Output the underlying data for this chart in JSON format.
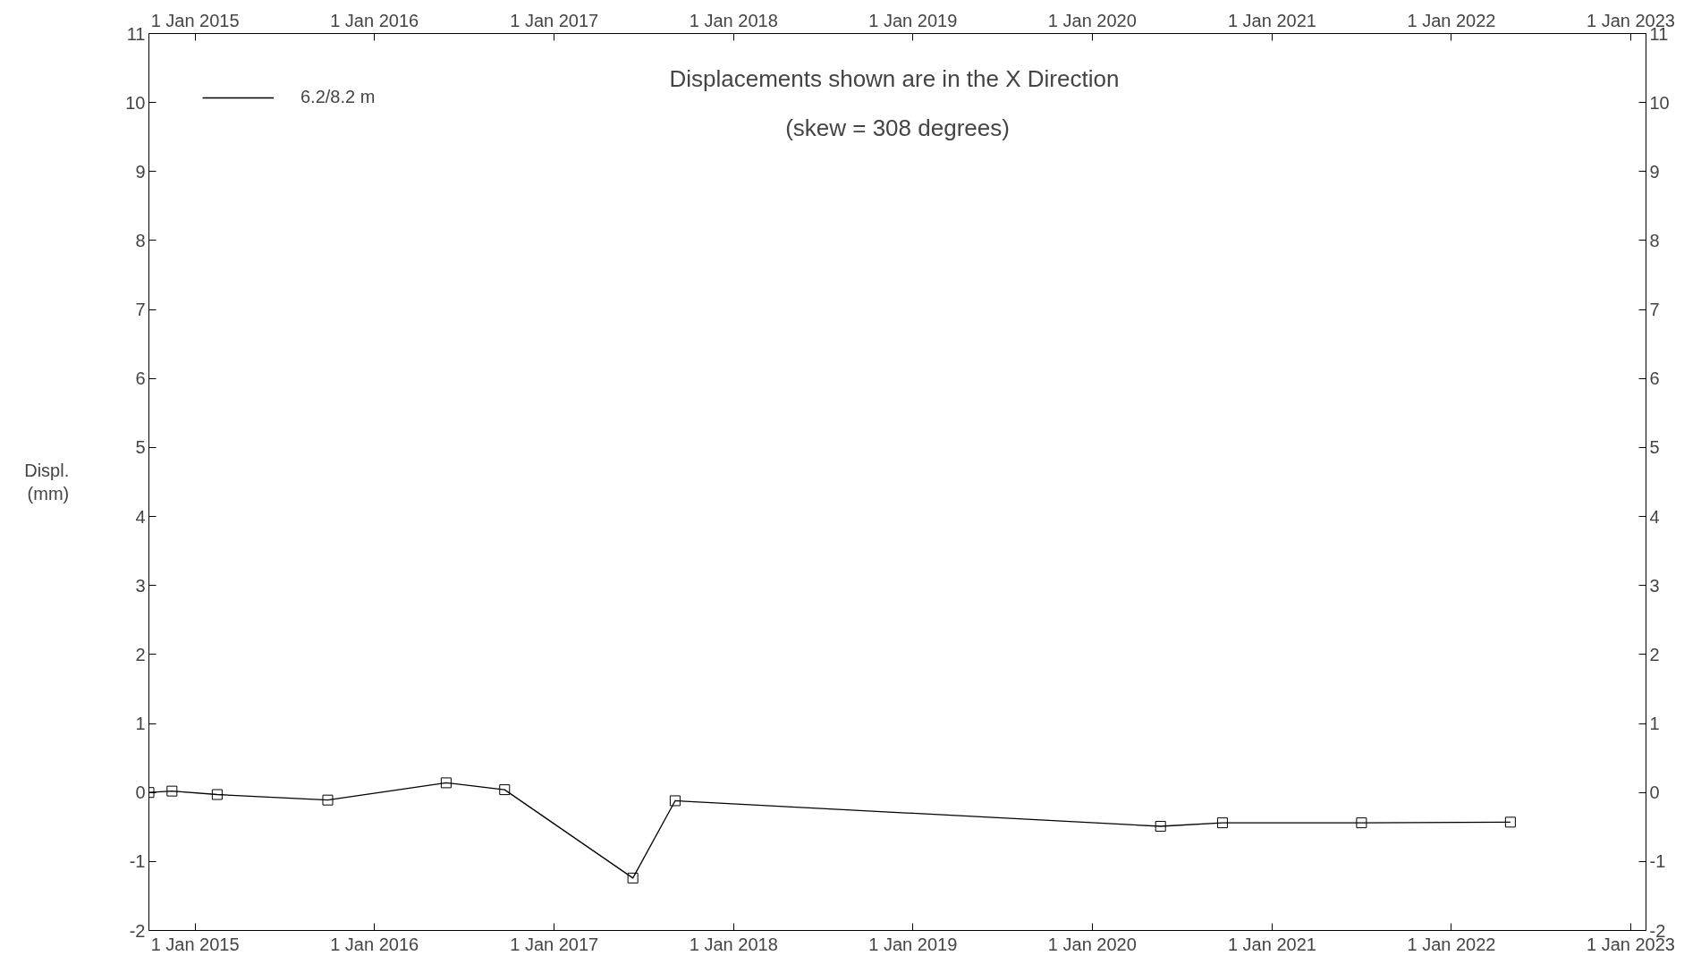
{
  "chart_data": {
    "type": "line",
    "title": "Displacements shown are in the  X Direction",
    "subtitle": "(skew = 308 degrees)",
    "ylabel": "Displ.\n(mm)",
    "x": [
      "2014-09-29",
      "2014-11-15",
      "2015-02-15",
      "2015-09-28",
      "2016-05-26",
      "2016-09-22",
      "2017-06-10",
      "2017-09-04",
      "2020-05-19",
      "2020-09-22",
      "2021-07-02",
      "2022-05-01"
    ],
    "series": [
      {
        "name": "6.2/8.2 m",
        "color": "#000000",
        "values": [
          0.0,
          0.02,
          -0.03,
          -0.11,
          0.14,
          0.04,
          -1.24,
          -0.12,
          -0.49,
          -0.44,
          -0.44,
          -0.43
        ]
      }
    ],
    "xlim": [
      "2014-09-29",
      "2023-02-01"
    ],
    "xticks": [
      {
        "value": "2015-01-01",
        "label": "1 Jan 2015"
      },
      {
        "value": "2016-01-01",
        "label": "1 Jan 2016"
      },
      {
        "value": "2017-01-01",
        "label": "1 Jan 2017"
      },
      {
        "value": "2018-01-01",
        "label": "1 Jan 2018"
      },
      {
        "value": "2019-01-01",
        "label": "1 Jan 2019"
      },
      {
        "value": "2020-01-01",
        "label": "1 Jan 2020"
      },
      {
        "value": "2021-01-01",
        "label": "1 Jan 2021"
      },
      {
        "value": "2022-01-01",
        "label": "1 Jan 2022"
      },
      {
        "value": "2023-01-01",
        "label": "1 Jan 2023"
      }
    ],
    "x2lim": [
      "2014-09-29",
      "2023-02-01"
    ],
    "x2ticks": [
      {
        "value": "2015-01-01",
        "label": "1 Jan 2015"
      },
      {
        "value": "2016-01-01",
        "label": "1 Jan 2016"
      },
      {
        "value": "2017-01-01",
        "label": "1 Jan 2017"
      },
      {
        "value": "2018-01-01",
        "label": "1 Jan 2018"
      },
      {
        "value": "2019-01-01",
        "label": "1 Jan 2019"
      },
      {
        "value": "2020-01-01",
        "label": "1 Jan 2020"
      },
      {
        "value": "2021-01-01",
        "label": "1 Jan 2021"
      },
      {
        "value": "2022-01-01",
        "label": "1 Jan 2022"
      },
      {
        "value": "2023-01-01",
        "label": "1 Jan 2023"
      }
    ],
    "ylim": [
      -2,
      11
    ],
    "yticks": [
      -2,
      -1,
      0,
      1,
      2,
      3,
      4,
      5,
      6,
      7,
      8,
      9,
      10,
      11
    ],
    "y2lim": [
      -2,
      11
    ],
    "y2ticks": [
      -2,
      -1,
      0,
      1,
      2,
      3,
      4,
      5,
      6,
      7,
      8,
      9,
      10,
      11
    ],
    "grid": false,
    "legend": "top left",
    "marker": "square",
    "line_style": "solid"
  }
}
